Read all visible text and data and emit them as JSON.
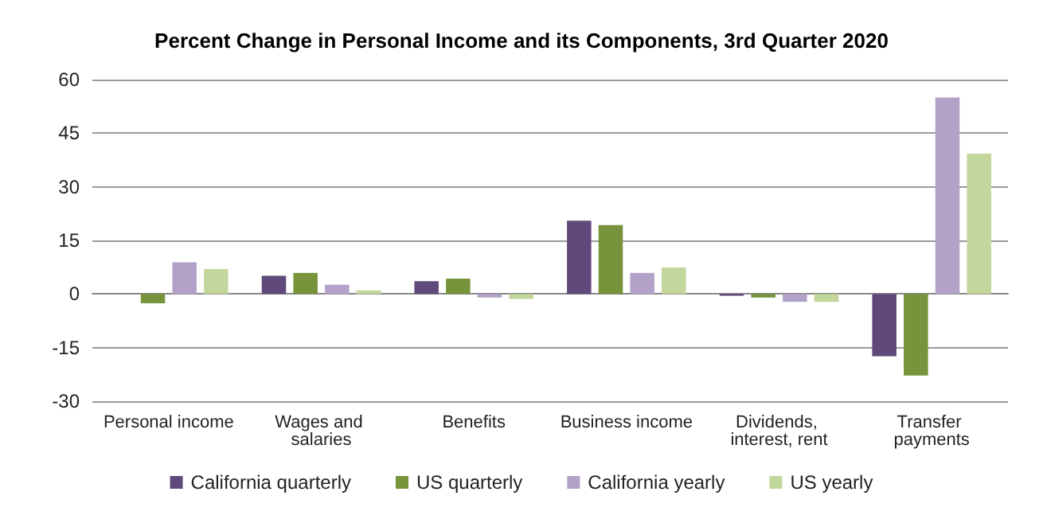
{
  "chart_data": {
    "type": "bar",
    "title": "Percent Change in Personal Income and its Components, 3rd Quarter 2020",
    "categories": [
      "Personal income",
      "Wages and salaries",
      "Benefits",
      "Business income",
      "Dividends, interest, rent",
      "Transfer payments"
    ],
    "series": [
      {
        "name": "California quarterly",
        "color": "#604a7b",
        "values": [
          0,
          5.1,
          3.6,
          20.5,
          -0.5,
          -17.4
        ]
      },
      {
        "name": "US quarterly",
        "color": "#77933c",
        "values": [
          -2.6,
          5.9,
          4.3,
          19.3,
          -1,
          -22.8
        ]
      },
      {
        "name": "California yearly",
        "color": "#b3a2c7",
        "values": [
          8.9,
          2.6,
          -1,
          5.9,
          -2.2,
          55
        ]
      },
      {
        "name": "US yearly",
        "color": "#c3d69b",
        "values": [
          7,
          1,
          -1.4,
          7.4,
          -2.2,
          39.3
        ]
      }
    ],
    "ylim": [
      -30,
      60
    ],
    "yticks": [
      -30,
      -15,
      0,
      15,
      30,
      45,
      60
    ],
    "grid": "y",
    "legend": "bottom"
  }
}
